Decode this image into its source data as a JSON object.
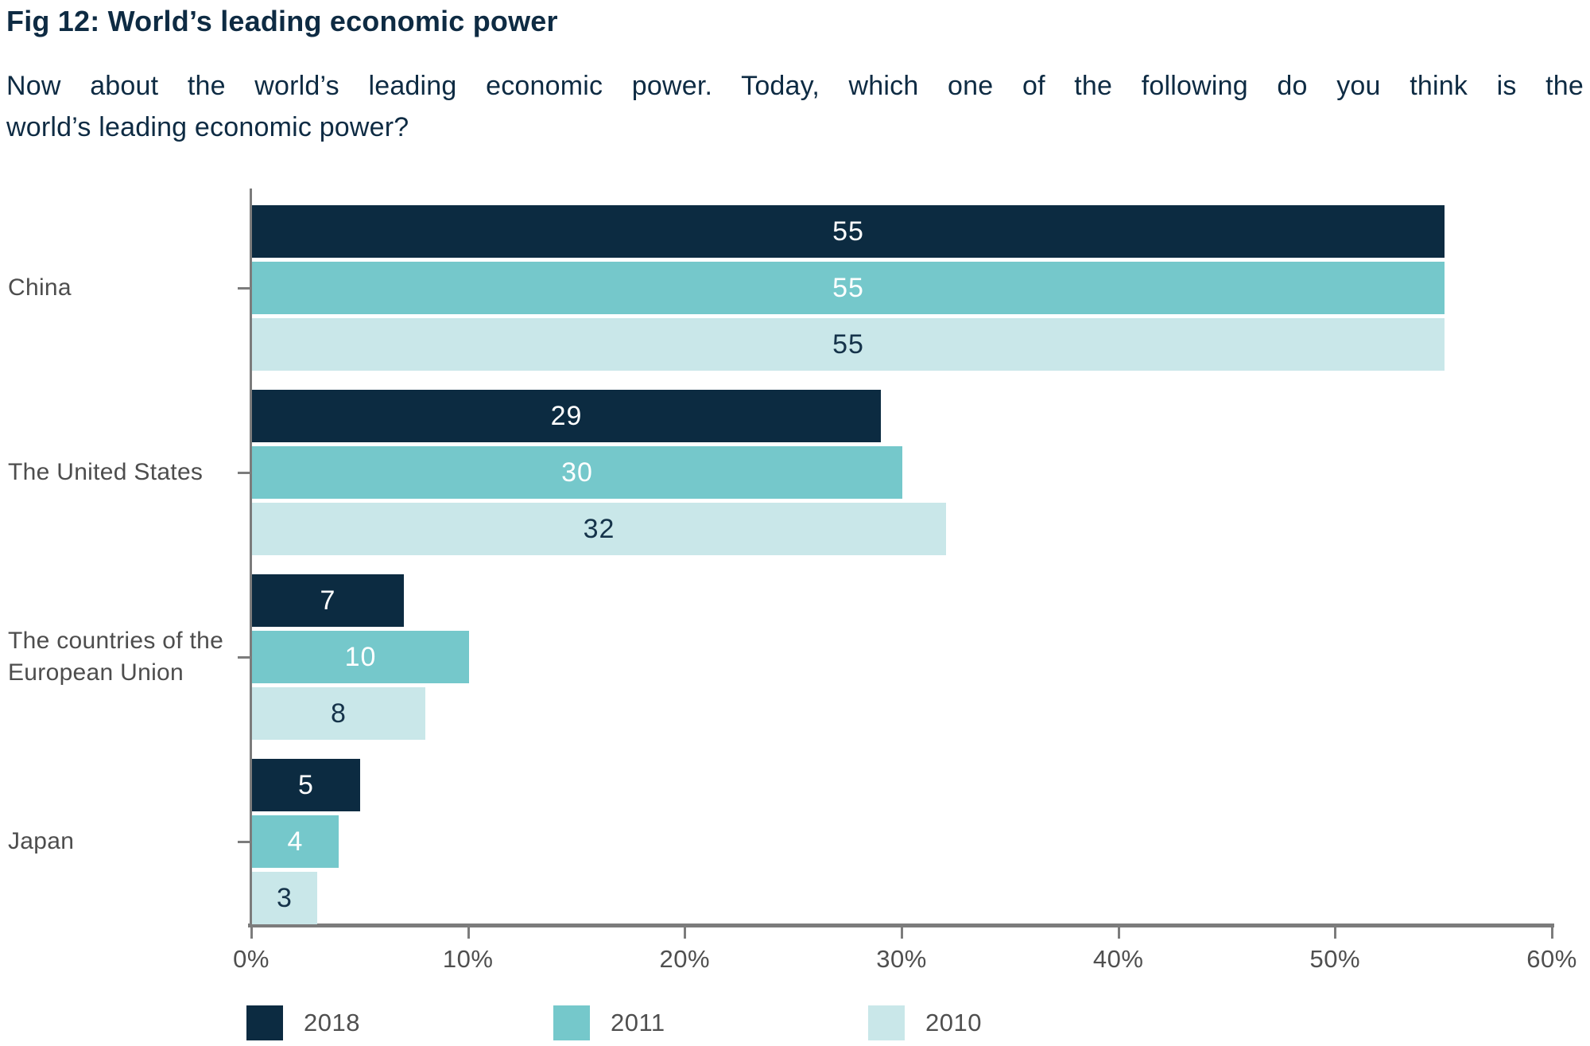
{
  "header": {
    "title": "Fig 12: World’s leading economic power",
    "subtitle": "Now about the world’s leading economic power. Today, which one of the following do you think is the world’s leading economic power?",
    "subtitle_lines": [
      "Now about the world’s leading economic power. Today, which one of the following do you think is the",
      "world’s leading economic power?"
    ]
  },
  "chart_data": {
    "type": "bar",
    "orientation": "horizontal",
    "title": "Fig 12: World’s leading economic power",
    "categories": [
      "China",
      "The United States",
      "The countries of the European Union",
      "Japan"
    ],
    "series": [
      {
        "name": "2018",
        "color": "#0c2b41",
        "label_color": "#ffffff",
        "values": [
          55,
          29,
          7,
          5
        ]
      },
      {
        "name": "2011",
        "color": "#75c8cb",
        "label_color": "#ffffff",
        "values": [
          55,
          30,
          10,
          4
        ]
      },
      {
        "name": "2010",
        "color": "#c9e7e9",
        "label_color": "#15334a",
        "values": [
          55,
          32,
          8,
          3
        ]
      }
    ],
    "xlabel": "",
    "ylabel": "",
    "x_ticks": [
      "0%",
      "10%",
      "20%",
      "30%",
      "40%",
      "50%",
      "60%"
    ],
    "xlim": [
      0,
      60
    ],
    "grid": false,
    "legend_position": "bottom"
  },
  "colors": {
    "navy_text": "#0e2b43",
    "category_gray": "#4d4d4d",
    "tick_gray": "#4f4f4f",
    "axis_gray": "#7c7c7c"
  }
}
